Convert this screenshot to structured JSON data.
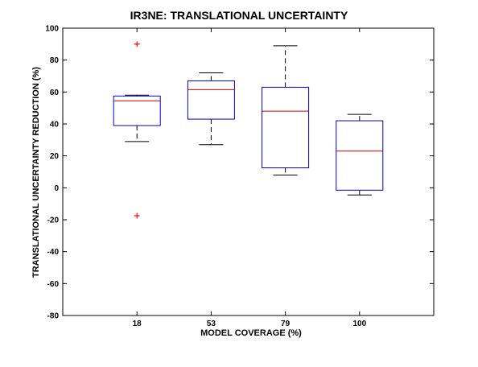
{
  "chart_data": {
    "type": "box",
    "title": "IR3NE: TRANSLATIONAL UNCERTAINTY",
    "xlabel": "MODEL COVERAGE (%)",
    "ylabel": "TRANSLATIONAL UNCERTAINTY REDUCTION (%)",
    "ylim": [
      -80,
      100
    ],
    "yticks": [
      -80,
      -60,
      -40,
      -20,
      0,
      20,
      40,
      60,
      80,
      100
    ],
    "categories": [
      "18",
      "53",
      "79",
      "100"
    ],
    "boxes": [
      {
        "category": "18",
        "whisker_low": 29,
        "q1": 39,
        "median": 54.5,
        "q3": 57.5,
        "whisker_high": 58,
        "outliers": [
          90,
          -17.5
        ]
      },
      {
        "category": "53",
        "whisker_low": 27,
        "q1": 43,
        "median": 61.5,
        "q3": 67,
        "whisker_high": 72,
        "outliers": []
      },
      {
        "category": "79",
        "whisker_low": 8,
        "q1": 12.5,
        "median": 48,
        "q3": 63,
        "whisker_high": 89,
        "outliers": []
      },
      {
        "category": "100",
        "whisker_low": -4.5,
        "q1": -1.5,
        "median": 23,
        "q3": 42,
        "whisker_high": 46,
        "outliers": []
      }
    ],
    "grid": false,
    "colors": {
      "box": "#0000cc",
      "median": "#cc0000",
      "whisker": "#000000",
      "outlier": "#ff0000",
      "axis": "#000000"
    }
  }
}
